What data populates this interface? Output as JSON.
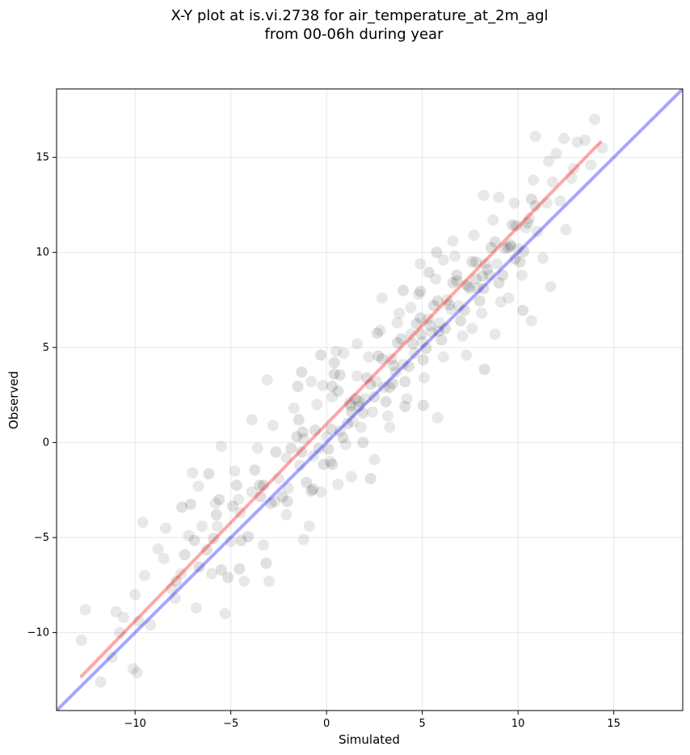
{
  "chart_data": {
    "type": "scatter",
    "title_line1": "X-Y plot at is.vi.2738 for air_temperature_at_2m_agl",
    "title_line2": "from 00-06h during year",
    "xlabel": "Simulated",
    "ylabel": "Observed",
    "xlim": [
      -14.1,
      18.6
    ],
    "ylim": [
      -14.1,
      18.6
    ],
    "x_ticks": [
      -10,
      -5,
      0,
      5,
      10,
      15
    ],
    "y_ticks": [
      -10,
      -5,
      0,
      5,
      10,
      15
    ],
    "x_tick_labels": [
      "−10",
      "−5",
      "0",
      "5",
      "10",
      "15"
    ],
    "y_tick_labels": [
      "−10",
      "−5",
      "0",
      "5",
      "10",
      "15"
    ],
    "grid": true,
    "colors": {
      "points": "#000000",
      "identity_line": "#0000ff",
      "fit_line": "#ff0000"
    },
    "identity_line": {
      "x": [
        -14.1,
        18.6
      ],
      "y": [
        -14.1,
        18.6
      ]
    },
    "fit_line": {
      "x": [
        -12.8,
        14.3
      ],
      "y": [
        -12.3,
        15.8
      ]
    },
    "points": [
      [
        -12.6,
        -8.8
      ],
      [
        -12.8,
        -10.4
      ],
      [
        -11.8,
        -12.6
      ],
      [
        -11.2,
        -11.3
      ],
      [
        -10.8,
        -10.0
      ],
      [
        -10.1,
        -11.9
      ],
      [
        -10.6,
        -9.2
      ],
      [
        -10.0,
        -8.0
      ],
      [
        -9.5,
        -7.0
      ],
      [
        -9.8,
        -9.4
      ],
      [
        -9.2,
        -9.6
      ],
      [
        -9.6,
        -4.2
      ],
      [
        -8.8,
        -5.6
      ],
      [
        -8.5,
        -6.1
      ],
      [
        -8.1,
        -7.7
      ],
      [
        -7.6,
        -6.9
      ],
      [
        -7.2,
        -4.9
      ],
      [
        -7.0,
        -1.6
      ],
      [
        -6.8,
        -8.7
      ],
      [
        -6.5,
        -4.4
      ],
      [
        -6.0,
        -6.9
      ],
      [
        -5.8,
        -3.2
      ],
      [
        -5.7,
        -4.4
      ],
      [
        -5.3,
        -9.0
      ],
      [
        -5.0,
        -5.2
      ],
      [
        -4.8,
        -1.5
      ],
      [
        -4.6,
        -3.0
      ],
      [
        -4.3,
        -7.3
      ],
      [
        -3.9,
        -2.6
      ],
      [
        -3.6,
        -0.3
      ],
      [
        -3.3,
        -5.4
      ],
      [
        -3.0,
        -7.3
      ],
      [
        -2.8,
        0.9
      ],
      [
        -2.5,
        -1.9
      ],
      [
        -2.1,
        -3.8
      ],
      [
        -2.0,
        -2.4
      ],
      [
        -1.7,
        1.8
      ],
      [
        -1.4,
        -1.2
      ],
      [
        -1.2,
        0.2
      ],
      [
        -0.9,
        -4.4
      ],
      [
        -0.7,
        -0.7
      ],
      [
        -0.5,
        2.0
      ],
      [
        -0.3,
        -2.6
      ],
      [
        0.0,
        0.3
      ],
      [
        0.2,
        -1.0
      ],
      [
        0.3,
        2.4
      ],
      [
        0.5,
        4.8
      ],
      [
        0.7,
        0.6
      ],
      [
        1.0,
        -0.1
      ],
      [
        1.2,
        2.1
      ],
      [
        1.4,
        1.1
      ],
      [
        1.6,
        3.5
      ],
      [
        1.8,
        0.8
      ],
      [
        2.0,
        2.3
      ],
      [
        2.2,
        4.5
      ],
      [
        2.4,
        1.6
      ],
      [
        2.6,
        3.2
      ],
      [
        2.8,
        5.9
      ],
      [
        3.0,
        2.9
      ],
      [
        3.2,
        1.4
      ],
      [
        3.4,
        4.4
      ],
      [
        3.6,
        3.7
      ],
      [
        3.8,
        6.8
      ],
      [
        4.0,
        4.1
      ],
      [
        4.2,
        2.3
      ],
      [
        4.4,
        5.7
      ],
      [
        4.6,
        4.7
      ],
      [
        4.8,
        7.8
      ],
      [
        5.0,
        5.3
      ],
      [
        5.1,
        3.4
      ],
      [
        5.3,
        6.5
      ],
      [
        5.5,
        5.8
      ],
      [
        5.7,
        8.6
      ],
      [
        5.9,
        6.3
      ],
      [
        6.1,
        4.5
      ],
      [
        6.3,
        7.5
      ],
      [
        6.5,
        7.0
      ],
      [
        6.7,
        9.8
      ],
      [
        6.9,
        7.2
      ],
      [
        7.1,
        5.6
      ],
      [
        7.3,
        8.3
      ],
      [
        7.5,
        8.1
      ],
      [
        7.7,
        10.9
      ],
      [
        7.9,
        8.1
      ],
      [
        8.1,
        6.8
      ],
      [
        8.3,
        9.4
      ],
      [
        8.5,
        8.8
      ],
      [
        8.7,
        11.7
      ],
      [
        8.9,
        9.4
      ],
      [
        9.1,
        7.4
      ],
      [
        9.3,
        10.2
      ],
      [
        9.6,
        10.3
      ],
      [
        9.8,
        12.6
      ],
      [
        10.0,
        10.2
      ],
      [
        10.2,
        8.8
      ],
      [
        10.4,
        11.3
      ],
      [
        10.6,
        11.8
      ],
      [
        10.8,
        13.8
      ],
      [
        11.0,
        11.1
      ],
      [
        11.3,
        9.7
      ],
      [
        11.5,
        12.6
      ],
      [
        11.8,
        13.7
      ],
      [
        12.0,
        15.2
      ],
      [
        12.2,
        12.7
      ],
      [
        12.5,
        11.2
      ],
      [
        12.8,
        13.9
      ],
      [
        13.1,
        15.8
      ],
      [
        13.5,
        15.9
      ],
      [
        14.0,
        17.0
      ],
      [
        14.4,
        15.5
      ],
      [
        10.9,
        16.1
      ],
      [
        12.9,
        14.4
      ],
      [
        9.5,
        7.6
      ],
      [
        6.1,
        9.6
      ],
      [
        3.7,
        6.3
      ],
      [
        1.6,
        5.2
      ],
      [
        -0.8,
        3.2
      ],
      [
        -2.1,
        -0.8
      ],
      [
        -4.5,
        -3.7
      ],
      [
        -6.7,
        -2.3
      ],
      [
        -8.4,
        -4.5
      ],
      [
        -3.9,
        1.2
      ],
      [
        0.9,
        4.7
      ],
      [
        2.5,
        -0.9
      ],
      [
        4.4,
        7.1
      ],
      [
        7.3,
        4.6
      ],
      [
        9.0,
        12.9
      ],
      [
        10.7,
        6.4
      ],
      [
        5.8,
        1.3
      ],
      [
        -1.2,
        -5.1
      ],
      [
        -7.9,
        -8.2
      ],
      [
        11.7,
        8.2
      ],
      [
        8.8,
        5.7
      ],
      [
        1.3,
        -1.8
      ],
      [
        -2.7,
        -3.1
      ],
      [
        3.3,
        0.8
      ],
      [
        6.6,
        10.6
      ],
      [
        4.9,
        9.4
      ],
      [
        -5.5,
        -0.2
      ],
      [
        2.9,
        7.6
      ],
      [
        -9.9,
        -12.1
      ],
      [
        12.4,
        16.0
      ],
      [
        -11.0,
        -8.9
      ],
      [
        11.6,
        14.8
      ],
      [
        7.6,
        6.0
      ],
      [
        0.6,
        -2.2
      ],
      [
        -3.1,
        3.3
      ],
      [
        13.8,
        14.6
      ],
      [
        -0.2,
        3.0
      ],
      [
        8.2,
        13.0
      ]
    ]
  }
}
